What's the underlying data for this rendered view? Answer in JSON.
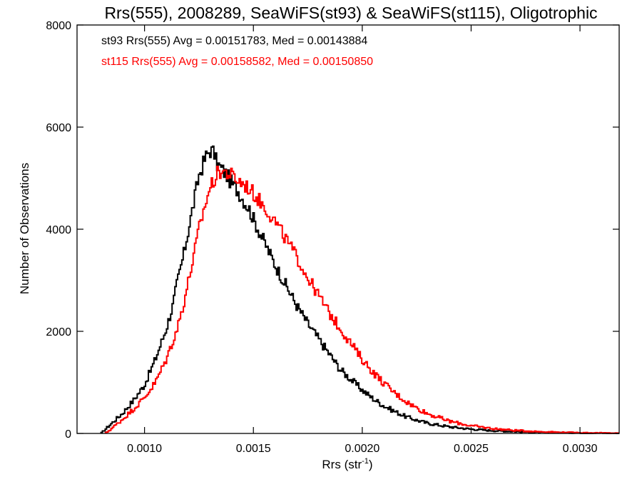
{
  "chart_data": {
    "type": "line",
    "title": "Rrs(555), 2008289, SeaWiFS(st93) & SeaWiFS(st115), Oligotrophic",
    "xlabel_main": "Rrs (str",
    "xlabel_sup": "-1",
    "xlabel_close": ")",
    "ylabel": "Number of Observations",
    "xlim": [
      0.00069,
      0.00318
    ],
    "ylim": [
      0,
      8000
    ],
    "xticks": [
      {
        "value": 0.001,
        "label": "0.0010"
      },
      {
        "value": 0.0015,
        "label": "0.0015"
      },
      {
        "value": 0.002,
        "label": "0.0020"
      },
      {
        "value": 0.0025,
        "label": "0.0025"
      },
      {
        "value": 0.003,
        "label": "0.0030"
      }
    ],
    "yticks": [
      {
        "value": 0,
        "label": "0"
      },
      {
        "value": 2000,
        "label": "2000"
      },
      {
        "value": 4000,
        "label": "4000"
      },
      {
        "value": 6000,
        "label": "6000"
      },
      {
        "value": 8000,
        "label": "8000"
      }
    ],
    "series": [
      {
        "name": "st93",
        "color": "#000000",
        "legend": "st93 Rrs(555) Avg = 0.00151783, Med = 0.00143884",
        "x": [
          0.0008,
          0.00085,
          0.0009,
          0.00095,
          0.001,
          0.00105,
          0.0011,
          0.00113,
          0.00115,
          0.00118,
          0.0012,
          0.00123,
          0.00125,
          0.00128,
          0.0013,
          0.00132,
          0.00133,
          0.00135,
          0.00138,
          0.0014,
          0.00143,
          0.00145,
          0.00148,
          0.0015,
          0.00155,
          0.0016,
          0.00165,
          0.0017,
          0.00175,
          0.0018,
          0.00185,
          0.0019,
          0.00195,
          0.002,
          0.00205,
          0.0021,
          0.00215,
          0.0022,
          0.00225,
          0.0023,
          0.0024,
          0.0025,
          0.0026,
          0.0027,
          0.0028,
          0.0029,
          0.003,
          0.0031,
          0.00318
        ],
        "y": [
          0,
          200,
          400,
          650,
          950,
          1450,
          2050,
          2500,
          2950,
          3500,
          3950,
          4600,
          5050,
          5400,
          5550,
          5500,
          5300,
          5200,
          5050,
          4900,
          4750,
          4600,
          4400,
          4200,
          3750,
          3300,
          2900,
          2500,
          2150,
          1850,
          1550,
          1250,
          1050,
          850,
          680,
          540,
          430,
          330,
          260,
          200,
          130,
          85,
          55,
          35,
          22,
          14,
          8,
          5,
          3
        ]
      },
      {
        "name": "st115",
        "color": "#ff0000",
        "legend": "st115 Rrs(555) Avg = 0.00158582, Med = 0.00150850",
        "x": [
          0.00082,
          0.00085,
          0.0009,
          0.00095,
          0.001,
          0.00105,
          0.0011,
          0.00115,
          0.00118,
          0.0012,
          0.00123,
          0.00125,
          0.00128,
          0.0013,
          0.00133,
          0.00135,
          0.00138,
          0.0014,
          0.00143,
          0.00145,
          0.00148,
          0.0015,
          0.00155,
          0.0016,
          0.00165,
          0.0017,
          0.00175,
          0.0018,
          0.00185,
          0.0019,
          0.00195,
          0.002,
          0.00205,
          0.0021,
          0.00215,
          0.0022,
          0.00225,
          0.0023,
          0.0024,
          0.0025,
          0.0026,
          0.0027,
          0.0028,
          0.0029,
          0.003,
          0.0031,
          0.00318
        ],
        "y": [
          0,
          100,
          280,
          480,
          700,
          1000,
          1450,
          2050,
          2550,
          2950,
          3550,
          4000,
          4500,
          4800,
          5050,
          5150,
          5100,
          5050,
          4950,
          4900,
          4800,
          4700,
          4450,
          4150,
          3800,
          3450,
          3050,
          2700,
          2350,
          2050,
          1750,
          1450,
          1200,
          980,
          790,
          630,
          500,
          390,
          240,
          150,
          95,
          60,
          38,
          24,
          15,
          10,
          6
        ]
      }
    ]
  }
}
